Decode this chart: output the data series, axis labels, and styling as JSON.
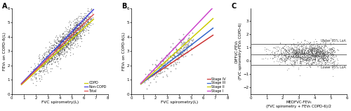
{
  "figsize": [
    5.0,
    1.59
  ],
  "dpi": 100,
  "panel_A": {
    "label": "A",
    "xlabel": "FVC spirometry(L)",
    "ylabel": "FEV₆ on COPD-6(L)",
    "xlim": [
      0,
      8
    ],
    "ylim": [
      0,
      6
    ],
    "xticks": [
      0,
      1,
      2,
      3,
      4,
      5,
      6,
      7,
      8
    ],
    "yticks": [
      0,
      1,
      2,
      3,
      4,
      5,
      6
    ],
    "n_total": 1200,
    "scatter_color": "#444444",
    "scatter_alpha": 0.55,
    "scatter_size": 1.0,
    "noise_std": 0.42,
    "lines": [
      {
        "label": "COPD",
        "color": "#cccc00",
        "slope": 0.76,
        "intercept": 0.05
      },
      {
        "label": "Non-COPD",
        "color": "#4444dd",
        "slope": 0.86,
        "intercept": 0.05
      },
      {
        "label": "Total",
        "color": "#dd5555",
        "slope": 0.81,
        "intercept": 0.05
      }
    ],
    "line_xrange": [
      0.8,
      6.8
    ]
  },
  "panel_B": {
    "label": "B",
    "xlabel": "FVC spirometry(L)",
    "ylabel": "FEV₆ on COPD-6(L)",
    "xlim": [
      0,
      8
    ],
    "ylim": [
      0,
      6
    ],
    "xticks": [
      0,
      1,
      2,
      3,
      4,
      5,
      6,
      7,
      8
    ],
    "yticks": [
      0,
      1,
      2,
      3,
      4,
      5,
      6
    ],
    "n_total": 250,
    "scatter_color": "#555555",
    "scatter_alpha": 0.55,
    "scatter_size": 1.5,
    "noise_std": 0.38,
    "lines": [
      {
        "label": "Stage IV",
        "color": "#cc3333",
        "slope": 0.56,
        "intercept": 0.3
      },
      {
        "label": "Stage III",
        "color": "#3366cc",
        "slope": 0.65,
        "intercept": 0.18
      },
      {
        "label": "Stage II",
        "color": "#cccc00",
        "slope": 0.76,
        "intercept": 0.1
      },
      {
        "label": "Stage I",
        "color": "#cc44cc",
        "slope": 0.88,
        "intercept": 0.05
      }
    ],
    "line_xrange": [
      0.8,
      6.8
    ]
  },
  "panel_C": {
    "label": "C",
    "xlabel": "MEDFVC-FEV₆\n(FVC spirometry + FEV₆ COPD-6)/2",
    "ylabel": "DIFFVC-FEV₆\n(FVC spirometry-FEV₆ COPD-6)",
    "xlim": [
      0,
      6
    ],
    "ylim": [
      -2.5,
      4.0
    ],
    "xticks": [
      0,
      1,
      2,
      3,
      4,
      5,
      6
    ],
    "yticks": [
      -2,
      -1,
      0,
      1,
      2,
      3
    ],
    "n_total": 1487,
    "scatter_color": "#333333",
    "scatter_alpha": 0.45,
    "scatter_size": 0.8,
    "mean_line": 0.514,
    "upper_loa": 1.297,
    "lower_loa": -0.272,
    "line_color": "#666666",
    "upper_label": "Upper 95% LoA",
    "lower_label": "Lower 95% LoA"
  },
  "background_color": "#ffffff",
  "tick_fontsize": 4,
  "label_fontsize": 4.2,
  "legend_fontsize": 3.5,
  "panel_label_fontsize": 7
}
